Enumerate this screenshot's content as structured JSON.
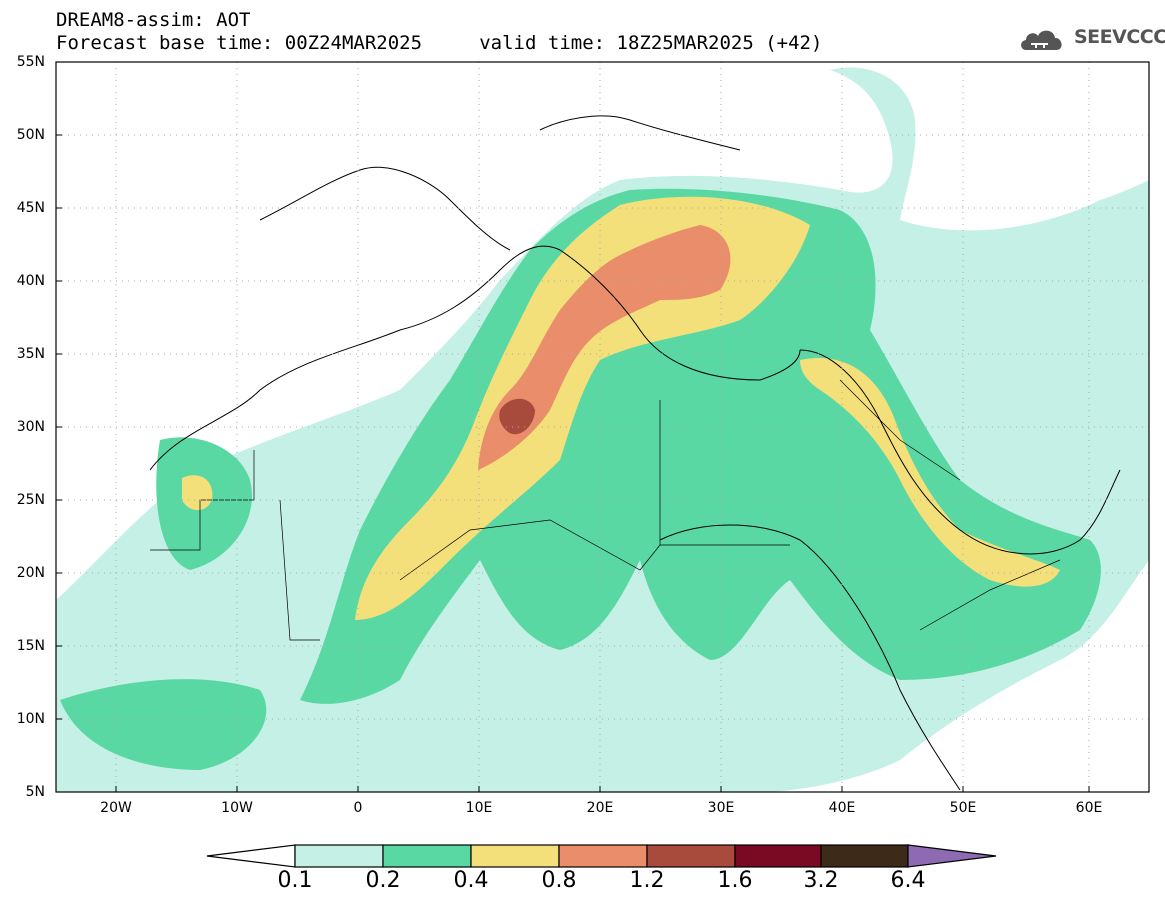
{
  "title_line1": "DREAM8-assim: AOT",
  "title_line2": "Forecast base time: 00Z24MAR2025     valid time: 18Z25MAR2025 (+42)",
  "logo_text": "SEEVCCC",
  "logo_icon": "cloud-icon",
  "lat_labels": [
    "55N",
    "50N",
    "45N",
    "40N",
    "35N",
    "30N",
    "25N",
    "20N",
    "15N",
    "10N",
    "5N"
  ],
  "lon_labels": [
    "20W",
    "10W",
    "0",
    "10E",
    "20E",
    "30E",
    "40E",
    "50E",
    "60E"
  ],
  "colorbar": {
    "labels": [
      "0.1",
      "0.2",
      "0.4",
      "0.8",
      "1.2",
      "1.6",
      "3.2",
      "6.4"
    ],
    "colors": [
      "#ffffff",
      "#c5f0e6",
      "#5ad8a4",
      "#f4e07a",
      "#e98d6a",
      "#a84a3c",
      "#7a0a24",
      "#3e2a18",
      "#8e6ab3"
    ]
  }
}
